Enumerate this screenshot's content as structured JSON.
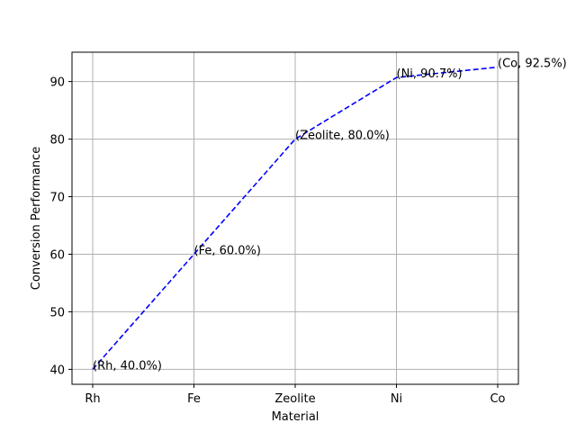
{
  "chart_data": {
    "type": "line",
    "categories": [
      "Rh",
      "Fe",
      "Zeolite",
      "Ni",
      "Co"
    ],
    "series": [
      {
        "values": [
          40.0,
          60.0,
          80.0,
          90.7,
          92.5
        ],
        "color": "#0000ff",
        "line_style": "dashed"
      }
    ],
    "annotations": [
      "(Rh, 40.0%)",
      "(Fe, 60.0%)",
      "(Zeolite, 80.0%)",
      "(Ni, 90.7%)",
      "(Co, 92.5%)"
    ],
    "xlabel": "Material",
    "ylabel": "Conversion Performance",
    "ylim": [
      37.4,
      95.1
    ],
    "yticks": [
      40,
      50,
      60,
      70,
      80,
      90
    ],
    "grid": true
  }
}
